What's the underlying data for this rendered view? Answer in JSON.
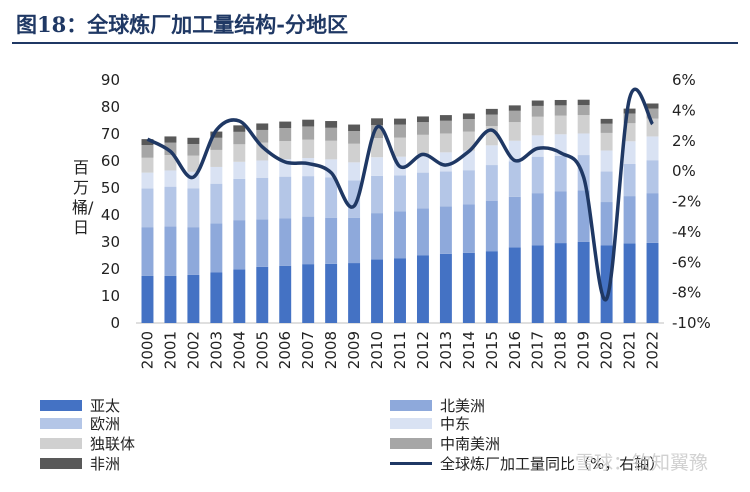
{
  "header": {
    "title": "图18：全球炼厂加工量结构-分地区"
  },
  "chart_data": {
    "type": "bar",
    "stacked": true,
    "ylabel": "百万桶/日",
    "ylim": [
      0,
      90
    ],
    "y_ticks": [
      "0",
      "10",
      "20",
      "30",
      "40",
      "50",
      "60",
      "70",
      "80",
      "90"
    ],
    "y2lim": [
      -10,
      6
    ],
    "y2_ticks": [
      "6%",
      "4%",
      "2%",
      "0%",
      "-2%",
      "-4%",
      "-6%",
      "-8%",
      "-10%"
    ],
    "categories": [
      "2000",
      "2001",
      "2002",
      "2003",
      "2004",
      "2005",
      "2006",
      "2007",
      "2008",
      "2009",
      "2010",
      "2011",
      "2012",
      "2013",
      "2014",
      "2015",
      "2016",
      "2017",
      "2018",
      "2019",
      "2020",
      "2021",
      "2022"
    ],
    "series": [
      {
        "name": "亚太",
        "color": "#4472C4",
        "values": [
          17.5,
          17.5,
          17.8,
          18.7,
          19.8,
          20.8,
          21.2,
          21.8,
          21.9,
          22.2,
          23.5,
          24.0,
          25.0,
          25.6,
          26.0,
          26.6,
          28.0,
          28.8,
          29.6,
          30.1,
          28.7,
          29.5,
          29.7
        ]
      },
      {
        "name": "北美洲",
        "color": "#8EA9DB",
        "values": [
          18.0,
          18.3,
          17.7,
          18.2,
          18.3,
          17.6,
          17.5,
          17.6,
          17.1,
          16.8,
          17.2,
          17.4,
          17.5,
          17.6,
          17.9,
          18.7,
          18.7,
          19.3,
          19.1,
          19.0,
          16.1,
          17.5,
          18.4
        ]
      },
      {
        "name": "欧洲",
        "color": "#B4C6E7",
        "values": [
          14.3,
          14.7,
          14.4,
          14.7,
          15.3,
          15.4,
          15.5,
          15.0,
          14.9,
          13.8,
          13.8,
          13.3,
          13.2,
          12.9,
          12.7,
          13.2,
          13.2,
          13.5,
          13.2,
          13.1,
          11.3,
          11.9,
          12.2
        ]
      },
      {
        "name": "中东",
        "color": "#D9E2F3",
        "values": [
          5.9,
          6.0,
          6.1,
          6.2,
          6.3,
          6.4,
          6.5,
          6.7,
          6.7,
          6.7,
          6.9,
          6.9,
          6.9,
          7.1,
          7.2,
          7.3,
          7.6,
          7.9,
          8.0,
          8.0,
          7.8,
          8.4,
          8.8
        ]
      },
      {
        "name": "独联体",
        "color": "#D0D0D0",
        "values": [
          5.5,
          5.7,
          6.0,
          6.3,
          6.5,
          6.6,
          6.7,
          6.8,
          6.9,
          6.9,
          7.1,
          7.1,
          7.1,
          7.0,
          7.1,
          7.1,
          6.9,
          6.9,
          6.9,
          6.8,
          6.5,
          6.7,
          6.6
        ]
      },
      {
        "name": "中南美洲",
        "color": "#A6A6A6",
        "values": [
          4.7,
          4.6,
          4.3,
          4.5,
          4.6,
          4.7,
          4.8,
          4.9,
          4.8,
          4.7,
          4.8,
          4.8,
          4.7,
          4.7,
          4.6,
          4.3,
          4.2,
          4.0,
          3.8,
          3.7,
          3.4,
          3.6,
          3.7
        ]
      },
      {
        "name": "非洲",
        "color": "#595959",
        "values": [
          2.2,
          2.3,
          2.3,
          2.3,
          2.4,
          2.4,
          2.4,
          2.5,
          2.5,
          2.4,
          2.5,
          2.2,
          2.1,
          2.1,
          2.1,
          2.1,
          2.0,
          2.0,
          2.0,
          2.0,
          1.8,
          1.8,
          1.9
        ]
      }
    ],
    "line_series": {
      "name": "全球炼厂加工量同比（%，右轴）",
      "color": "#1F3864",
      "axis": "right",
      "values": [
        2.1,
        1.3,
        -0.4,
        2.7,
        3.3,
        1.6,
        0.6,
        0.5,
        -0.1,
        -2.3,
        2.9,
        0.3,
        1.1,
        0.4,
        1.3,
        2.7,
        0.7,
        1.5,
        1.2,
        -0.4,
        -8.4,
        4.8,
        3.1
      ]
    },
    "legend": {
      "position": "bottom"
    }
  },
  "legend_labels": {
    "ap": "亚太",
    "na": "北美洲",
    "eu": "欧洲",
    "me": "中东",
    "cis": "独联体",
    "csa": "中南美洲",
    "af": "非洲",
    "line": "全球炼厂加工量同比（%，右轴）"
  },
  "watermark": "雪球：钦知翼豫"
}
